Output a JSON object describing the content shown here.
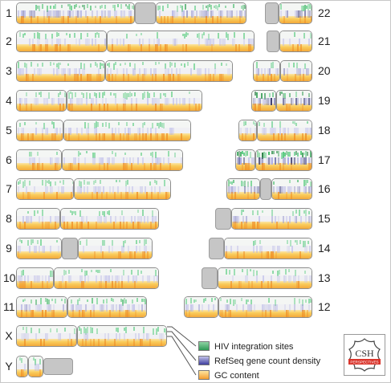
{
  "legend": {
    "hiv": "HIV integration sites",
    "refseq": "RefSeq gene count density",
    "gc": "GC content",
    "colors": {
      "hiv": "#3aa860",
      "refseq": "#4848a8",
      "gc": "#f6b142"
    }
  },
  "logo": {
    "top": "CSH",
    "bottom": "PERSPECTIVES"
  },
  "chromosomes": [
    {
      "id": "1",
      "label": "1"
    },
    {
      "id": "2",
      "label": "2"
    },
    {
      "id": "3",
      "label": "3"
    },
    {
      "id": "4",
      "label": "4"
    },
    {
      "id": "5",
      "label": "5"
    },
    {
      "id": "6",
      "label": "6"
    },
    {
      "id": "7",
      "label": "7"
    },
    {
      "id": "8",
      "label": "8"
    },
    {
      "id": "9",
      "label": "9"
    },
    {
      "id": "10",
      "label": "10"
    },
    {
      "id": "11",
      "label": "11"
    },
    {
      "id": "X",
      "label": "X"
    },
    {
      "id": "Y",
      "label": "Y"
    },
    {
      "id": "22",
      "label": "22"
    },
    {
      "id": "21",
      "label": "21"
    },
    {
      "id": "20",
      "label": "20"
    },
    {
      "id": "19",
      "label": "19"
    },
    {
      "id": "18",
      "label": "18"
    },
    {
      "id": "17",
      "label": "17"
    },
    {
      "id": "16",
      "label": "16"
    },
    {
      "id": "15",
      "label": "15"
    },
    {
      "id": "14",
      "label": "14"
    },
    {
      "id": "13",
      "label": "13"
    },
    {
      "id": "12",
      "label": "12"
    }
  ]
}
